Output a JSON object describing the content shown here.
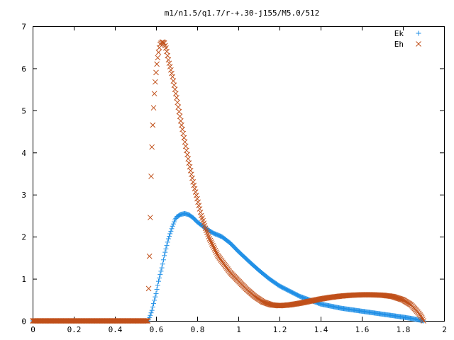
{
  "chart_data": {
    "type": "scatter",
    "title": "m1/n1.5/q1.7/r-+.30-j155/M5.0/512",
    "xlabel": "",
    "ylabel": "",
    "xlim": [
      0,
      2
    ],
    "ylim": [
      0,
      7
    ],
    "xticks": [
      0,
      0.2,
      0.4,
      0.6,
      0.8,
      1,
      1.2,
      1.4,
      1.6,
      1.8,
      2
    ],
    "xtick_labels": [
      "0",
      "0.2",
      "0.4",
      "0.6",
      "0.8",
      "1",
      "1.2",
      "1.4",
      "1.6",
      "1.8",
      "2"
    ],
    "yticks": [
      0,
      1,
      2,
      3,
      4,
      5,
      6,
      7
    ],
    "ytick_labels": [
      "0",
      "1",
      "2",
      "3",
      "4",
      "5",
      "6",
      "7"
    ],
    "grid": false,
    "legend_position": "top-right",
    "series": [
      {
        "name": "Ek",
        "marker": "plus",
        "color": "#1f8fe6",
        "x": [
          0,
          0.1,
          0.2,
          0.3,
          0.4,
          0.5,
          0.56,
          0.57,
          0.58,
          0.59,
          0.6,
          0.61,
          0.62,
          0.63,
          0.64,
          0.65,
          0.66,
          0.67,
          0.68,
          0.69,
          0.7,
          0.72,
          0.74,
          0.76,
          0.78,
          0.8,
          0.84,
          0.88,
          0.92,
          0.96,
          1.0,
          1.05,
          1.1,
          1.15,
          1.2,
          1.3,
          1.4,
          1.5,
          1.6,
          1.7,
          1.8,
          1.85,
          1.88,
          1.9
        ],
        "y": [
          0,
          0,
          0,
          0,
          0,
          0,
          0,
          0.1,
          0.25,
          0.45,
          0.65,
          0.9,
          1.1,
          1.3,
          1.55,
          1.75,
          1.95,
          2.1,
          2.25,
          2.38,
          2.47,
          2.53,
          2.55,
          2.52,
          2.45,
          2.35,
          2.2,
          2.08,
          2.0,
          1.85,
          1.65,
          1.42,
          1.2,
          1.0,
          0.83,
          0.58,
          0.4,
          0.3,
          0.23,
          0.16,
          0.09,
          0.05,
          0.02,
          0
        ]
      },
      {
        "name": "Eh",
        "marker": "cross",
        "color": "#c0501a",
        "x": [
          0,
          0.1,
          0.2,
          0.3,
          0.4,
          0.5,
          0.56,
          0.57,
          0.575,
          0.58,
          0.585,
          0.59,
          0.595,
          0.6,
          0.605,
          0.61,
          0.615,
          0.62,
          0.63,
          0.64,
          0.65,
          0.66,
          0.68,
          0.7,
          0.72,
          0.74,
          0.76,
          0.78,
          0.8,
          0.82,
          0.84,
          0.86,
          0.88,
          0.9,
          0.93,
          0.96,
          1.0,
          1.04,
          1.08,
          1.12,
          1.16,
          1.2,
          1.25,
          1.3,
          1.35,
          1.4,
          1.45,
          1.5,
          1.55,
          1.6,
          1.65,
          1.7,
          1.75,
          1.8,
          1.84,
          1.87,
          1.89,
          1.9
        ],
        "y": [
          0,
          0,
          0,
          0,
          0,
          0,
          0,
          1.92,
          3.26,
          4.13,
          4.78,
          5.25,
          5.62,
          5.9,
          6.15,
          6.32,
          6.47,
          6.57,
          6.63,
          6.6,
          6.45,
          6.2,
          5.8,
          5.3,
          4.75,
          4.25,
          3.75,
          3.3,
          2.9,
          2.5,
          2.2,
          1.95,
          1.75,
          1.55,
          1.35,
          1.15,
          0.95,
          0.75,
          0.58,
          0.45,
          0.38,
          0.36,
          0.38,
          0.42,
          0.47,
          0.52,
          0.56,
          0.59,
          0.61,
          0.62,
          0.62,
          0.61,
          0.58,
          0.5,
          0.38,
          0.22,
          0.1,
          0
        ]
      }
    ]
  }
}
